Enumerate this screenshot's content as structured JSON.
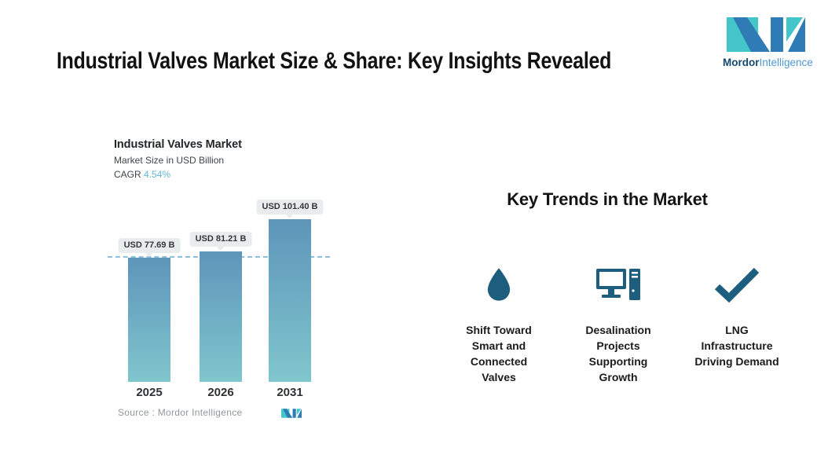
{
  "page": {
    "title": "Industrial Valves Market Size & Share: Key Insights Revealed"
  },
  "logo": {
    "bold": "Mordor",
    "light": "Intelligence"
  },
  "chart": {
    "title": "Industrial Valves Market",
    "subtitle": "Market Size in USD Billion",
    "cagr_label": "CAGR",
    "cagr_value": "4.54%",
    "source": "Source :  Mordor Intelligence"
  },
  "chart_data": {
    "type": "bar",
    "title": "Industrial Valves Market",
    "ylabel": "Market Size in USD Billion",
    "categories": [
      "2025",
      "2026",
      "2031"
    ],
    "values": [
      77.69,
      81.21,
      101.4
    ],
    "bar_labels": [
      "USD 77.69 B",
      "USD 81.21 B",
      "USD 101.40 B"
    ],
    "cagr_pct": 4.54,
    "reference_line_value": 77.69,
    "ylim": [
      0,
      110
    ],
    "grid": false,
    "legend": false,
    "bar_color_top": "#5e95ba",
    "bar_color_bottom": "#80c6cd"
  },
  "trends": {
    "heading": "Key Trends in the Market",
    "items": [
      {
        "icon": "droplet-icon",
        "label": "Shift Toward\nSmart and\nConnected\nValves"
      },
      {
        "icon": "desktop-computer-icon",
        "label": "Desalination\nProjects\nSupporting\nGrowth"
      },
      {
        "icon": "checkmark-icon",
        "label": "LNG\nInfrastructure\nDriving Demand"
      }
    ]
  },
  "colors": {
    "brand_blue": "#2e7bb6",
    "brand_teal": "#43c5ca",
    "icon_blue": "#1d5e7f",
    "cagr_blue": "#66b3d9",
    "dashed_line": "#8fbeda",
    "bubble_bg": "#e9eced"
  }
}
